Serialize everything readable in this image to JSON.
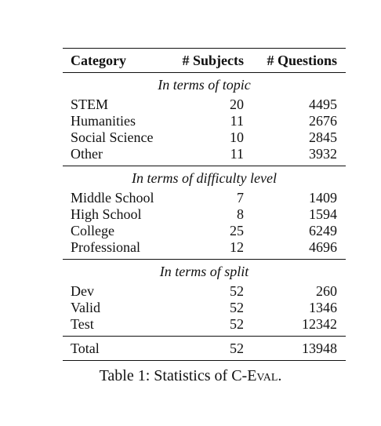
{
  "table": {
    "headers": {
      "category": "Category",
      "subjects": "# Subjects",
      "questions": "# Questions"
    },
    "sections": [
      {
        "title": "In terms of topic",
        "rows": [
          {
            "category": "STEM",
            "subjects": "20",
            "questions": "4495"
          },
          {
            "category": "Humanities",
            "subjects": "11",
            "questions": "2676"
          },
          {
            "category": "Social Science",
            "subjects": "10",
            "questions": "2845"
          },
          {
            "category": "Other",
            "subjects": "11",
            "questions": "3932"
          }
        ]
      },
      {
        "title": "In terms of difficulty level",
        "rows": [
          {
            "category": "Middle School",
            "subjects": "7",
            "questions": "1409"
          },
          {
            "category": "High School",
            "subjects": "8",
            "questions": "1594"
          },
          {
            "category": "College",
            "subjects": "25",
            "questions": "6249"
          },
          {
            "category": "Professional",
            "subjects": "12",
            "questions": "4696"
          }
        ]
      },
      {
        "title": "In terms of split",
        "rows": [
          {
            "category": "Dev",
            "subjects": "52",
            "questions": "260"
          },
          {
            "category": "Valid",
            "subjects": "52",
            "questions": "1346"
          },
          {
            "category": "Test",
            "subjects": "52",
            "questions": "12342"
          }
        ]
      }
    ],
    "total": {
      "category": "Total",
      "subjects": "52",
      "questions": "13948"
    }
  },
  "caption": {
    "prefix": "Table 1: Statistics of ",
    "name": "C-Eval",
    "suffix": "."
  }
}
